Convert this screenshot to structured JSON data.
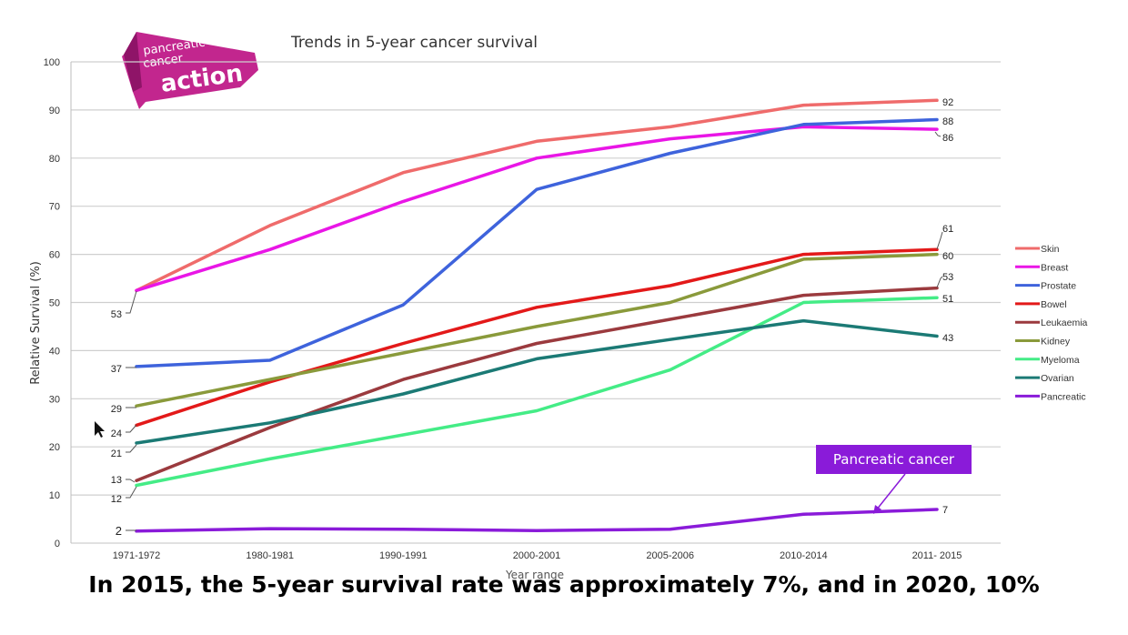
{
  "logo": {
    "line1": "pancreatic",
    "line2": "cancer",
    "line3": "action",
    "color": "#c2268e"
  },
  "chart_data": {
    "type": "line",
    "title": "Trends in 5-year cancer survival",
    "xlabel": "Year range",
    "ylabel": "Relative Survival (%)",
    "ylim": [
      0,
      100
    ],
    "yticks": [
      "0",
      "10",
      "20",
      "30",
      "40",
      "50",
      "60",
      "70",
      "80",
      "90",
      "100"
    ],
    "grid": true,
    "legend_position": "right",
    "categories": [
      "1971-1972",
      "1980-1981",
      "1990-1991",
      "2000-2001",
      "2005-2006",
      "2010-2014",
      "2011- 2015"
    ],
    "series": [
      {
        "name": "Skin",
        "color": "#ef6b6b",
        "values": [
          52.5,
          66,
          77,
          83.5,
          86.5,
          91,
          92
        ]
      },
      {
        "name": "Breast",
        "color": "#e916e6",
        "values": [
          52.5,
          61,
          71,
          80,
          84,
          86.5,
          86
        ]
      },
      {
        "name": "Prostate",
        "color": "#3e63dc",
        "values": [
          36.7,
          38,
          49.5,
          73.5,
          81,
          87,
          88
        ]
      },
      {
        "name": "Bowel",
        "color": "#e31919",
        "values": [
          24.5,
          33.5,
          41.5,
          49,
          53.5,
          60,
          61
        ]
      },
      {
        "name": "Leukaemia",
        "color": "#9b3a3e",
        "values": [
          13,
          24,
          34,
          41.5,
          46.5,
          51.5,
          53
        ]
      },
      {
        "name": "Kidney",
        "color": "#8a9a3b",
        "values": [
          28.5,
          34,
          39.5,
          45,
          50,
          59,
          60
        ]
      },
      {
        "name": "Myeloma",
        "color": "#44ec86",
        "values": [
          12,
          17.5,
          22.5,
          27.5,
          36,
          50,
          51
        ]
      },
      {
        "name": "Ovarian",
        "color": "#1b7a75",
        "values": [
          20.8,
          25,
          31,
          38.3,
          42.3,
          46.2,
          43
        ]
      },
      {
        "name": "Pancreatic",
        "color": "#8a1bd9",
        "values": [
          2.5,
          3,
          2.9,
          2.6,
          2.9,
          6,
          7
        ]
      }
    ],
    "start_labels": [
      {
        "text": "53",
        "value": 53
      },
      {
        "text": "37",
        "value": 37
      },
      {
        "text": "29",
        "value": 29
      },
      {
        "text": "24",
        "value": 24
      },
      {
        "text": "21",
        "value": 21
      },
      {
        "text": "13",
        "value": 13
      },
      {
        "text": "12",
        "value": 12
      },
      {
        "text": "2",
        "value": 2
      }
    ],
    "end_labels": [
      {
        "text": "92",
        "value": 92
      },
      {
        "text": "88",
        "value": 88
      },
      {
        "text": "86",
        "value": 86
      },
      {
        "text": "61",
        "value": 61
      },
      {
        "text": "60",
        "value": 60
      },
      {
        "text": "53",
        "value": 53
      },
      {
        "text": "51",
        "value": 51
      },
      {
        "text": "43",
        "value": 43
      },
      {
        "text": "7",
        "value": 7
      }
    ],
    "annotation": {
      "text": "Pancreatic cancer",
      "target_category": "2011- 2015",
      "target_value": 6.5,
      "color": "#8a1bd9"
    }
  },
  "caption": "In 2015, the 5-year survival rate was approximately 7%, and in 2020, 10%"
}
